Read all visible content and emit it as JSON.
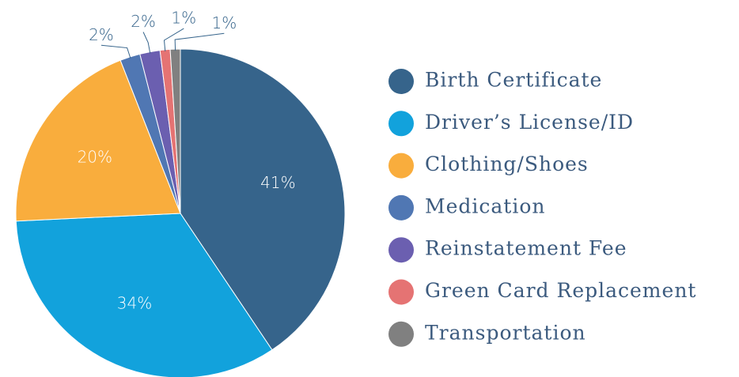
{
  "chart_data": {
    "type": "pie",
    "categories": [
      "Birth Certificate",
      "Driver’s License/ID",
      "Clothing/Shoes",
      "Medication",
      "Reinstatement Fee",
      "Green Card Replacement",
      "Transportation"
    ],
    "values": [
      41,
      34,
      20,
      2,
      2,
      1,
      1
    ],
    "value_labels": [
      "41%",
      "34%",
      "20%",
      "2%",
      "2%",
      "1%",
      "1%"
    ],
    "colors": [
      "#36648b",
      "#12a2dc",
      "#f9ad3d",
      "#5077b3",
      "#6b5fb0",
      "#e57373",
      "#808080"
    ],
    "legend": "right"
  }
}
